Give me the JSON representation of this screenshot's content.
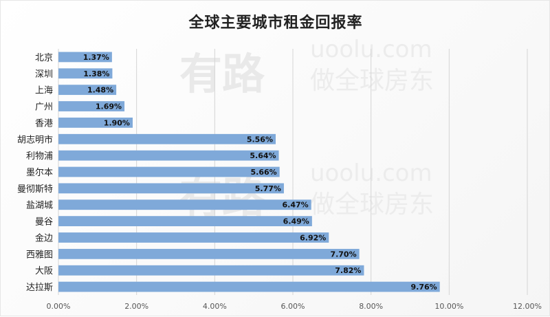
{
  "chart_data": {
    "type": "bar",
    "orientation": "horizontal",
    "title": "全球主要城市租金回报率",
    "xlabel": "",
    "ylabel": "",
    "xlim": [
      0,
      12
    ],
    "x_ticks": [
      "0.00%",
      "2.00%",
      "4.00%",
      "6.00%",
      "8.00%",
      "10.00%",
      "12.00%"
    ],
    "grid": "vertical",
    "legend": "none",
    "bar_color": "#7fa9d9",
    "categories": [
      "北京",
      "深圳",
      "上海",
      "广州",
      "香港",
      "胡志明市",
      "利物浦",
      "墨尔本",
      "曼彻斯特",
      "盐湖城",
      "曼谷",
      "金边",
      "西雅图",
      "大阪",
      "达拉斯"
    ],
    "values": [
      1.37,
      1.38,
      1.48,
      1.69,
      1.9,
      5.56,
      5.64,
      5.66,
      5.77,
      6.47,
      6.49,
      6.92,
      7.7,
      7.82,
      9.76
    ],
    "data_labels": [
      "1.37%",
      "1.38%",
      "1.48%",
      "1.69%",
      "1.90%",
      "5.56%",
      "5.64%",
      "5.66%",
      "5.77%",
      "6.47%",
      "6.49%",
      "6.92%",
      "7.70%",
      "7.82%",
      "9.76%"
    ]
  },
  "watermark": {
    "brand": "有路",
    "site": "uoolu.com",
    "slogan": "做全球房东"
  }
}
